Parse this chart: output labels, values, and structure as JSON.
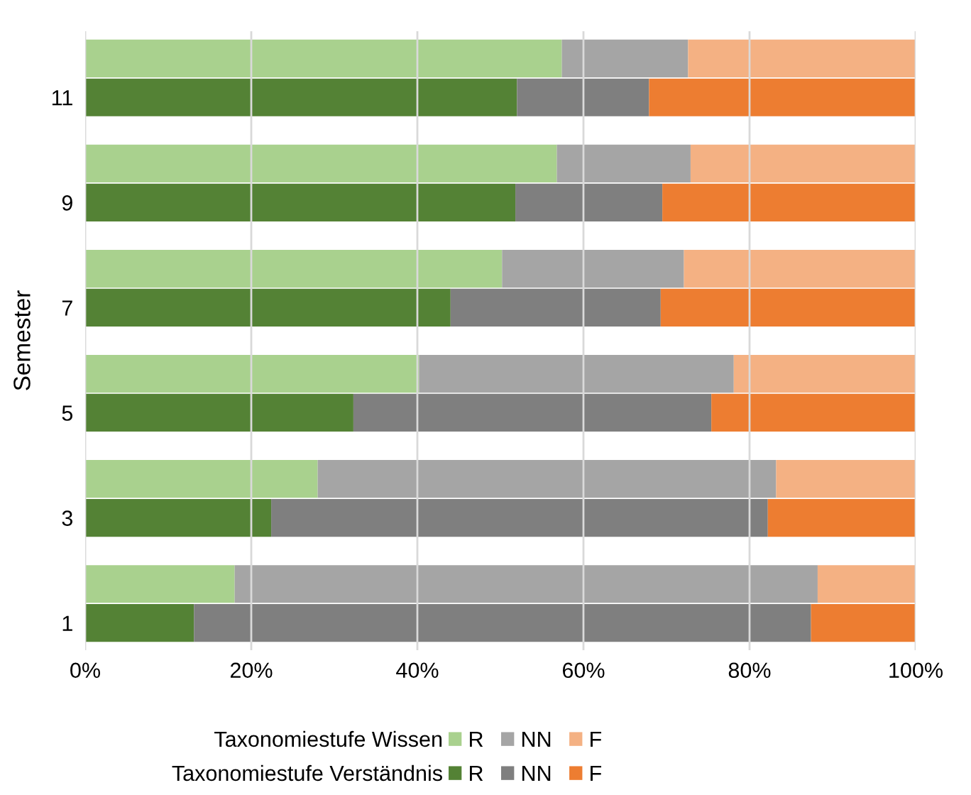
{
  "chart_data": {
    "type": "bar",
    "orientation": "horizontal",
    "stacked": true,
    "ylabel": "Semester",
    "categories": [
      null,
      "11",
      null,
      "9",
      null,
      "7",
      null,
      "5",
      null,
      "3",
      null,
      "1"
    ],
    "series": [
      {
        "name": "R",
        "color": "#a9d18e",
        "values": [
          57.4,
          null,
          56.8,
          null,
          50.2,
          null,
          40.2,
          null,
          28.0,
          null,
          18.0,
          null
        ]
      },
      {
        "name": "NN",
        "color": "#a5a5a5",
        "values": [
          15.2,
          null,
          16.1,
          null,
          21.9,
          null,
          37.9,
          null,
          55.2,
          null,
          70.2,
          null
        ]
      },
      {
        "name": "F",
        "color": "#f4b183",
        "values": [
          27.4,
          null,
          27.1,
          null,
          27.9,
          null,
          21.9,
          null,
          16.8,
          null,
          11.8,
          null
        ]
      },
      {
        "name": "R",
        "color": "#548235",
        "values": [
          null,
          52.0,
          null,
          51.8,
          null,
          44.0,
          null,
          32.3,
          null,
          22.4,
          null,
          13.1
        ]
      },
      {
        "name": "NN",
        "color": "#7f7f7f",
        "values": [
          null,
          15.9,
          null,
          17.7,
          null,
          25.3,
          null,
          43.1,
          null,
          59.8,
          null,
          74.3
        ]
      },
      {
        "name": "F",
        "color": "#ed7d31",
        "values": [
          null,
          32.1,
          null,
          30.5,
          null,
          30.7,
          null,
          24.6,
          null,
          17.8,
          null,
          12.6
        ]
      }
    ],
    "xlim": [
      0,
      100
    ],
    "xticks": [
      {
        "value": 0,
        "label": "0%"
      },
      {
        "value": 20,
        "label": "20%"
      },
      {
        "value": 40,
        "label": "40%"
      },
      {
        "value": 60,
        "label": "60%"
      },
      {
        "value": 80,
        "label": "80%"
      },
      {
        "value": 100,
        "label": "100%"
      }
    ],
    "grid": "x",
    "legend": "bottom",
    "annotations": [
      "Taxonomiestufe Wissen",
      "Taxonomiestufe Verständnis"
    ]
  }
}
